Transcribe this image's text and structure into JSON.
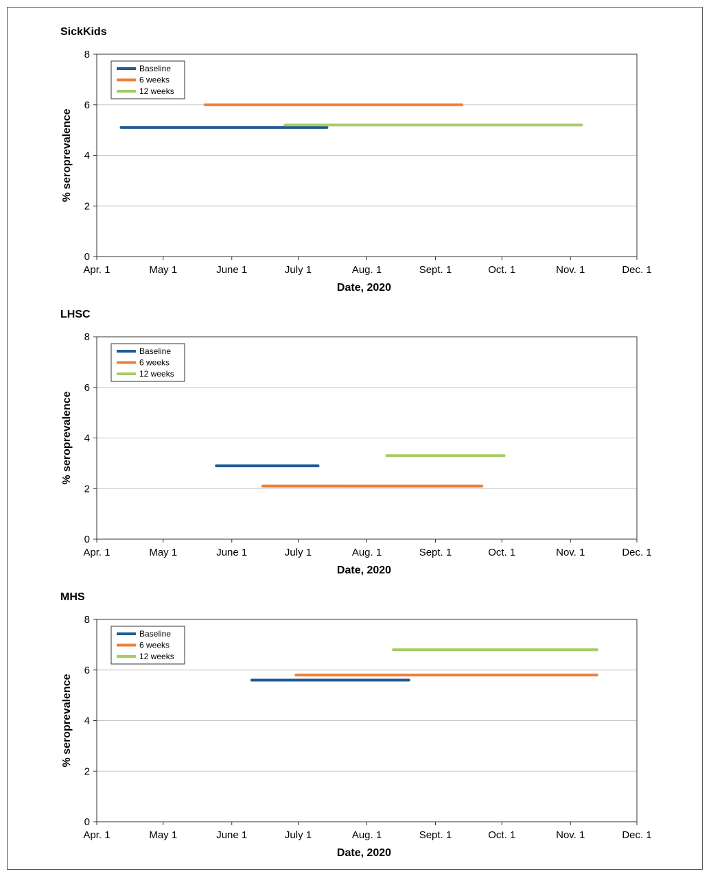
{
  "chart_data": [
    {
      "type": "line",
      "title": "SickKids",
      "xlabel": "Date, 2020",
      "ylabel": "% seroprevalence",
      "ylim": [
        0,
        8
      ],
      "yticks": [
        0,
        2,
        4,
        6,
        8
      ],
      "x_ticks": [
        "Apr. 1",
        "May 1",
        "June 1",
        "July 1",
        "Aug. 1",
        "Sept. 1",
        "Oct. 1",
        "Nov. 1",
        "Dec. 1"
      ],
      "legend": "top-left",
      "grid": "horizontal",
      "series": [
        {
          "name": "Baseline",
          "color": "#1f5b94",
          "x": [
            "2020-04-12",
            "2020-07-14"
          ],
          "y": [
            5.1,
            5.1
          ]
        },
        {
          "name": "6 weeks",
          "color": "#f07f34",
          "x": [
            "2020-05-20",
            "2020-09-13"
          ],
          "y": [
            6.0,
            6.0
          ]
        },
        {
          "name": "12 weeks",
          "color": "#a6cc65",
          "x": [
            "2020-06-25",
            "2020-11-06"
          ],
          "y": [
            5.2,
            5.2
          ]
        }
      ]
    },
    {
      "type": "line",
      "title": "LHSC",
      "xlabel": "Date, 2020",
      "ylabel": "% seroprevalence",
      "ylim": [
        0,
        8
      ],
      "yticks": [
        0,
        2,
        4,
        6,
        8
      ],
      "x_ticks": [
        "Apr. 1",
        "May 1",
        "June 1",
        "July 1",
        "Aug. 1",
        "Sept. 1",
        "Oct. 1",
        "Nov. 1",
        "Dec. 1"
      ],
      "legend": "top-left",
      "grid": "horizontal",
      "series": [
        {
          "name": "Baseline",
          "color": "#1f5b94",
          "x": [
            "2020-05-25",
            "2020-07-10"
          ],
          "y": [
            2.9,
            2.9
          ]
        },
        {
          "name": "6 weeks",
          "color": "#f07f34",
          "x": [
            "2020-06-15",
            "2020-09-22"
          ],
          "y": [
            2.1,
            2.1
          ]
        },
        {
          "name": "12 weeks",
          "color": "#a6cc65",
          "x": [
            "2020-08-10",
            "2020-10-02"
          ],
          "y": [
            3.3,
            3.3
          ]
        }
      ]
    },
    {
      "type": "line",
      "title": "MHS",
      "xlabel": "Date, 2020",
      "ylabel": "% seroprevalence",
      "ylim": [
        0,
        8
      ],
      "yticks": [
        0,
        2,
        4,
        6,
        8
      ],
      "x_ticks": [
        "Apr. 1",
        "May 1",
        "June 1",
        "July 1",
        "Aug. 1",
        "Sept. 1",
        "Oct. 1",
        "Nov. 1",
        "Dec. 1"
      ],
      "legend": "top-left",
      "grid": "horizontal",
      "series": [
        {
          "name": "Baseline",
          "color": "#1f5b94",
          "x": [
            "2020-06-10",
            "2020-08-20"
          ],
          "y": [
            5.6,
            5.6
          ]
        },
        {
          "name": "6 weeks",
          "color": "#f07f34",
          "x": [
            "2020-06-30",
            "2020-11-13"
          ],
          "y": [
            5.8,
            5.8
          ]
        },
        {
          "name": "12 weeks",
          "color": "#a6cc65",
          "x": [
            "2020-08-13",
            "2020-11-13"
          ],
          "y": [
            6.8,
            6.8
          ]
        }
      ]
    }
  ]
}
